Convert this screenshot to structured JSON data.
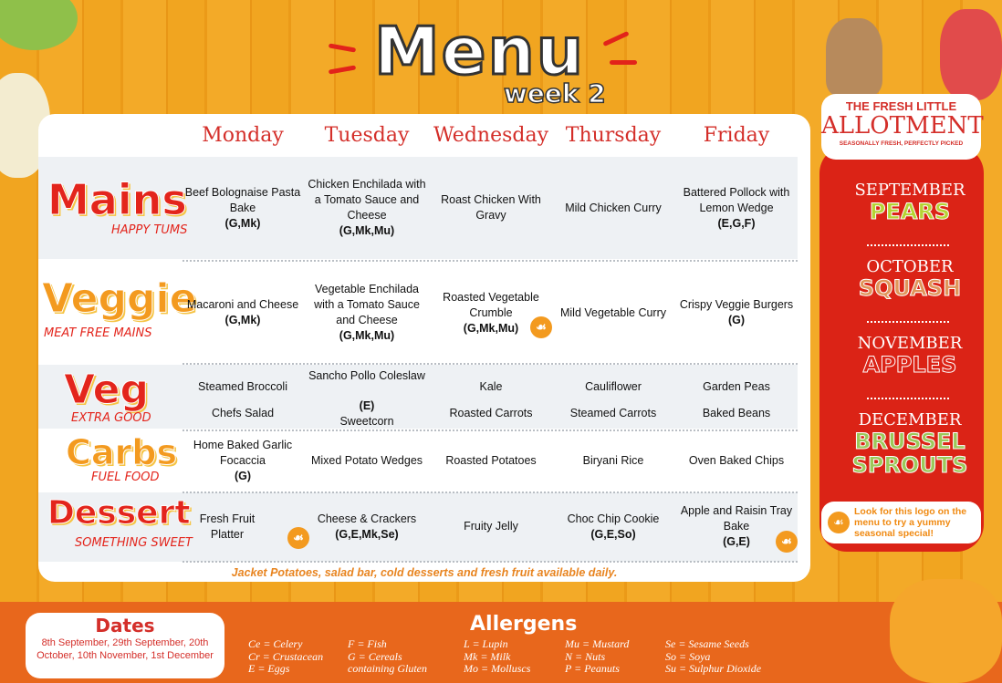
{
  "header": {
    "title": "Menu",
    "week": "week 2"
  },
  "days": [
    "Monday",
    "Tuesday",
    "Wednesday",
    "Thursday",
    "Friday"
  ],
  "rows": {
    "mains": {
      "label": "Mains",
      "sub": "HAPPY TUMS",
      "cells": [
        {
          "text": "Beef Bolognaise Pasta Bake",
          "allergens": "(G,Mk)"
        },
        {
          "text": "Chicken Enchilada with a Tomato Sauce and Cheese",
          "allergens": "(G,Mk,Mu)"
        },
        {
          "text": "Roast Chicken With Gravy",
          "allergens": ""
        },
        {
          "text": "Mild Chicken Curry",
          "allergens": ""
        },
        {
          "text": "Battered Pollock with Lemon Wedge",
          "allergens": "(E,G,F)"
        }
      ]
    },
    "veggie": {
      "label": "Veggie",
      "sub": "MEAT FREE MAINS",
      "cells": [
        {
          "text": "Macaroni and Cheese",
          "allergens": "(G,Mk)"
        },
        {
          "text": "Vegetable Enchilada with a Tomato Sauce and Cheese",
          "allergens": "(G,Mk,Mu)"
        },
        {
          "text": "Roasted Vegetable Crumble",
          "allergens": "(G,Mk,Mu)",
          "seasonal": true
        },
        {
          "text": "Mild Vegetable Curry",
          "allergens": ""
        },
        {
          "text": "Crispy Veggie Burgers",
          "allergens": "(G)"
        }
      ]
    },
    "veg": {
      "label": "Veg",
      "sub": "EXTRA GOOD",
      "cells": [
        {
          "top": "Steamed Broccoli",
          "bottom": "Chefs Salad"
        },
        {
          "top": "Sancho Pollo Coleslaw",
          "mid": "(E)",
          "bottom": "Sweetcorn"
        },
        {
          "top": "Kale",
          "bottom": "Roasted Carrots"
        },
        {
          "top": "Cauliflower",
          "bottom": "Steamed Carrots"
        },
        {
          "top": "Garden Peas",
          "bottom": "Baked Beans"
        }
      ]
    },
    "carbs": {
      "label": "Carbs",
      "sub": "FUEL FOOD",
      "cells": [
        {
          "text": "Home Baked Garlic Focaccia",
          "allergens": "(G)"
        },
        {
          "text": "Mixed Potato Wedges",
          "allergens": ""
        },
        {
          "text": "Roasted Potatoes",
          "allergens": ""
        },
        {
          "text": "Biryani Rice",
          "allergens": ""
        },
        {
          "text": "Oven Baked Chips",
          "allergens": ""
        }
      ]
    },
    "dessert": {
      "label": "Dessert",
      "sub": "SOMETHING SWEET",
      "cells": [
        {
          "text": "Fresh Fruit Platter",
          "allergens": "",
          "seasonal": true
        },
        {
          "text": "Cheese & Crackers",
          "allergens": "(G,E,Mk,Se)"
        },
        {
          "text": "Fruity Jelly",
          "allergens": ""
        },
        {
          "text": "Choc Chip Cookie",
          "allergens": "(G,E,So)"
        },
        {
          "text": "Apple and Raisin Tray Bake",
          "allergens": "(G,E)",
          "seasonal": true
        }
      ]
    }
  },
  "note": "Jacket Potatoes, salad bar, cold desserts and fresh fruit available daily.",
  "dates": {
    "title": "Dates",
    "text": "8th September, 29th September, 20th October, 10th November, 1st December"
  },
  "allergens": {
    "title": "Allergens",
    "columns": [
      [
        "Ce = Celery",
        "Cr = Crustacean",
        "E = Eggs"
      ],
      [
        "F = Fish",
        "G = Cereals",
        "containing Gluten"
      ],
      [
        "L = Lupin",
        "Mk = Milk",
        "Mo = Molluscs"
      ],
      [
        "Mu = Mustard",
        "N = Nuts",
        "P = Peanuts"
      ],
      [
        "Se = Sesame Seeds",
        "So = Soya",
        "Su = Sulphur Dioxide"
      ]
    ]
  },
  "brand": {
    "line1": "THE FRESH LITTLE",
    "line2": "ALLOTMENT",
    "tagline": "SEASONALLY FRESH, PERFECTLY PICKED"
  },
  "seasonal": [
    {
      "month": "SEPTEMBER",
      "food": "PEARS",
      "color": "#b6d334"
    },
    {
      "month": "OCTOBER",
      "food": "SQUASH",
      "color": "#e0955a"
    },
    {
      "month": "NOVEMBER",
      "food": "APPLES",
      "color": "#db2316"
    },
    {
      "month": "DECEMBER",
      "food": "BRUSSEL SPROUTS",
      "color": "#9cc85a"
    }
  ],
  "legend_note": "Look for this logo on the menu to try a yummy seasonal special!",
  "seasonal_icon": "carrot-icon"
}
